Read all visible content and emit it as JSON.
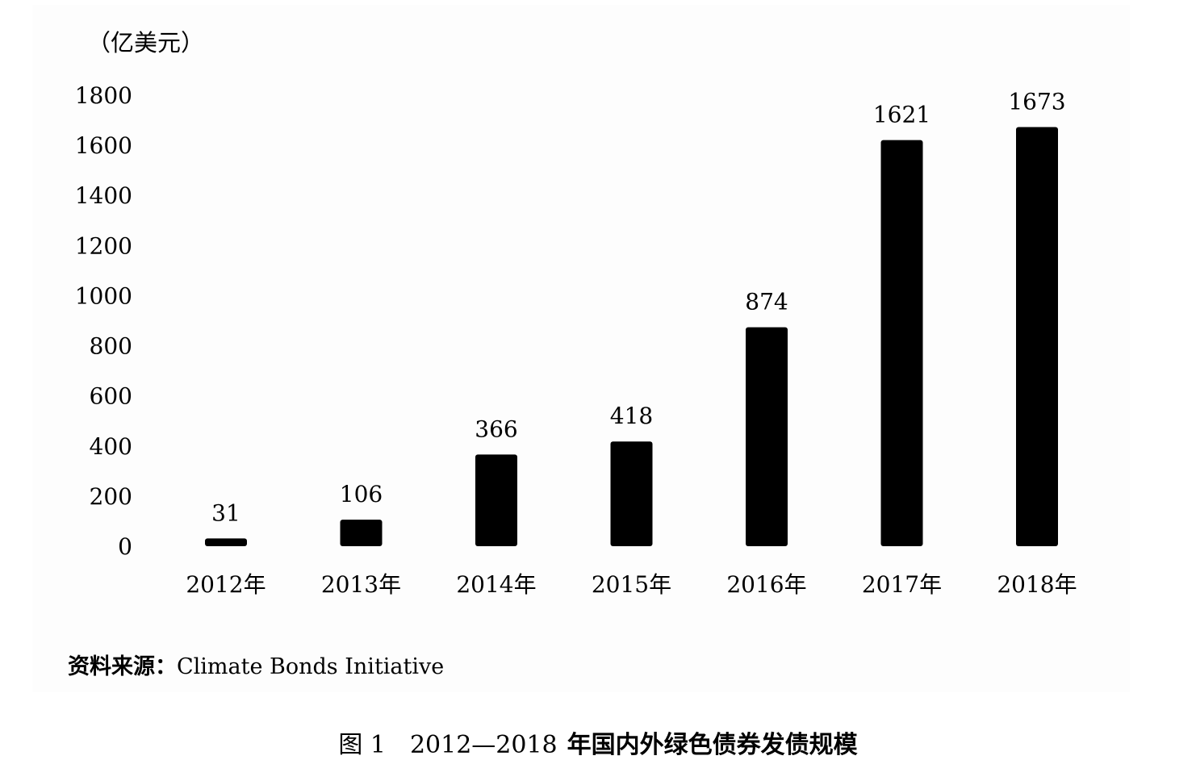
{
  "unit_label": "（亿美元）",
  "source": {
    "label": "资料来源：",
    "text": "Climate Bonds Initiative"
  },
  "caption": {
    "figure_no": "图 1",
    "years": "2012—2018",
    "title": "年国内外绿色债券发债规模"
  },
  "colors": {
    "bar": "#000000",
    "background": "#fdfdfd"
  },
  "chart_data": {
    "type": "bar",
    "title": "",
    "xlabel": "",
    "ylabel": "（亿美元）",
    "categories": [
      "2012年",
      "2013年",
      "2014年",
      "2015年",
      "2016年",
      "2017年",
      "2018年"
    ],
    "values": [
      31,
      106,
      366,
      418,
      874,
      1621,
      1673
    ],
    "value_labels": [
      "31",
      "106",
      "366",
      "418",
      "874",
      "1621",
      "1673"
    ],
    "yticks": [
      0,
      200,
      400,
      600,
      800,
      1000,
      1200,
      1400,
      1600,
      1800
    ],
    "ylim": [
      0,
      1800
    ],
    "grid": false,
    "legend": "none"
  }
}
